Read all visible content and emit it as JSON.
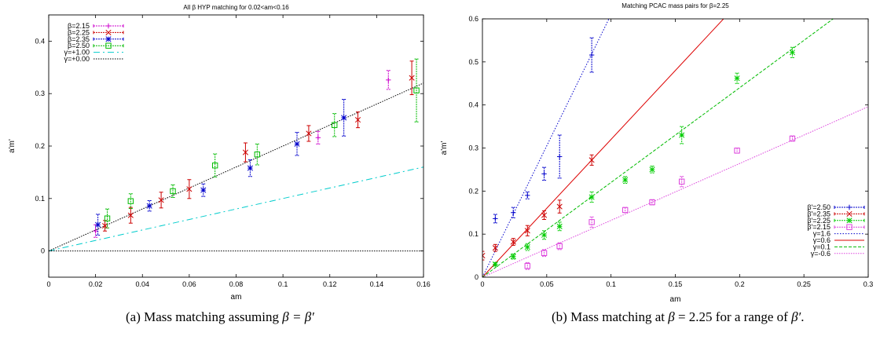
{
  "chart_data": [
    {
      "id": "a",
      "type": "scatter",
      "title": "All β HYP matching for 0.02<am<0.16",
      "xlabel": "am",
      "ylabel": "a'm'",
      "xlim": [
        0,
        0.16
      ],
      "ylim": [
        -0.05,
        0.45
      ],
      "xticks": [
        "0",
        "0.02",
        "0.04",
        "0.06",
        "0.08",
        "0.1",
        "0.12",
        "0.14",
        "0.16"
      ],
      "xtick_values": [
        0,
        0.02,
        0.04,
        0.06,
        0.08,
        0.1,
        0.12,
        0.14,
        0.16
      ],
      "yticks": [
        "0",
        "0.1",
        "0.2",
        "0.3",
        "0.4"
      ],
      "ytick_values": [
        0,
        0.1,
        0.2,
        0.3,
        0.4
      ],
      "legend_position": "top-left",
      "series": [
        {
          "name": "β=2.15",
          "color": "#cc00cc",
          "marker": "plus",
          "points": [
            [
              0.02,
              0.038,
              0.012
            ],
            [
              0.115,
              0.216,
              0.012
            ],
            [
              0.145,
              0.326,
              0.018
            ]
          ]
        },
        {
          "name": "β=2.25",
          "color": "#cc0000",
          "marker": "x",
          "points": [
            [
              0.024,
              0.048,
              0.01
            ],
            [
              0.035,
              0.068,
              0.015
            ],
            [
              0.048,
              0.097,
              0.015
            ],
            [
              0.06,
              0.118,
              0.018
            ],
            [
              0.084,
              0.188,
              0.018
            ],
            [
              0.111,
              0.224,
              0.015
            ],
            [
              0.132,
              0.25,
              0.015
            ],
            [
              0.155,
              0.33,
              0.032
            ]
          ]
        },
        {
          "name": "β=2.35",
          "color": "#0000cc",
          "marker": "star",
          "points": [
            [
              0.021,
              0.05,
              0.02
            ],
            [
              0.043,
              0.086,
              0.01
            ],
            [
              0.066,
              0.116,
              0.012
            ],
            [
              0.086,
              0.158,
              0.016
            ],
            [
              0.106,
              0.204,
              0.022
            ],
            [
              0.126,
              0.254,
              0.035
            ]
          ]
        },
        {
          "name": "β=2.50",
          "color": "#00bb00",
          "marker": "box",
          "points": [
            [
              0.025,
              0.062,
              0.018
            ],
            [
              0.035,
              0.095,
              0.014
            ],
            [
              0.053,
              0.114,
              0.012
            ],
            [
              0.071,
              0.163,
              0.022
            ],
            [
              0.089,
              0.184,
              0.02
            ],
            [
              0.122,
              0.24,
              0.022
            ],
            [
              0.157,
              0.306,
              0.06
            ]
          ]
        }
      ],
      "lines": [
        {
          "name": "γ=+1.00",
          "color": "#00cccc",
          "dash": "8,4,2,4",
          "slope": 1.0,
          "intercept": 0
        },
        {
          "name": "γ=+0.00",
          "color": "#000000",
          "dash": "1.5,1.5",
          "slope": 0.0,
          "intercept": 0
        },
        {
          "name": "",
          "color": "#000000",
          "dash": "1.5,1.5",
          "slope": 2.0,
          "intercept": 0
        }
      ]
    },
    {
      "id": "b",
      "type": "scatter",
      "title": "Matching PCAC mass pairs for β=2.25",
      "xlabel": "am",
      "ylabel": "a'm'",
      "xlim": [
        0,
        0.3
      ],
      "ylim": [
        0,
        0.6
      ],
      "xticks": [
        "0",
        "0.05",
        "0.1",
        "0.15",
        "0.2",
        "0.25",
        "0.3"
      ],
      "xtick_values": [
        0,
        0.05,
        0.1,
        0.15,
        0.2,
        0.25,
        0.3
      ],
      "yticks": [
        "0",
        "0.1",
        "0.2",
        "0.3",
        "0.4",
        "0.5",
        "0.6"
      ],
      "ytick_values": [
        0,
        0.1,
        0.2,
        0.3,
        0.4,
        0.5,
        0.6
      ],
      "legend_position": "bottom-right",
      "series": [
        {
          "name": "β'=2.50",
          "color": "#0000cc",
          "marker": "plus",
          "points": [
            [
              0.01,
              0.136,
              0.01
            ],
            [
              0.024,
              0.15,
              0.012
            ],
            [
              0.035,
              0.19,
              0.008
            ],
            [
              0.048,
              0.24,
              0.015
            ],
            [
              0.06,
              0.28,
              0.05
            ],
            [
              0.085,
              0.516,
              0.04
            ]
          ]
        },
        {
          "name": "β'=2.35",
          "color": "#cc0000",
          "marker": "x",
          "points": [
            [
              0.0,
              0.05,
              0.01
            ],
            [
              0.01,
              0.068,
              0.008
            ],
            [
              0.024,
              0.082,
              0.008
            ],
            [
              0.035,
              0.108,
              0.012
            ],
            [
              0.048,
              0.144,
              0.01
            ],
            [
              0.06,
              0.164,
              0.015
            ],
            [
              0.085,
              0.272,
              0.012
            ]
          ]
        },
        {
          "name": "β'=2.25",
          "color": "#00cc00",
          "marker": "star",
          "points": [
            [
              0.01,
              0.03,
              0.004
            ],
            [
              0.024,
              0.048,
              0.006
            ],
            [
              0.035,
              0.07,
              0.008
            ],
            [
              0.048,
              0.098,
              0.01
            ],
            [
              0.06,
              0.118,
              0.01
            ],
            [
              0.085,
              0.186,
              0.012
            ],
            [
              0.111,
              0.226,
              0.008
            ],
            [
              0.132,
              0.25,
              0.008
            ],
            [
              0.155,
              0.33,
              0.02
            ],
            [
              0.198,
              0.462,
              0.012
            ],
            [
              0.241,
              0.522,
              0.012
            ]
          ]
        },
        {
          "name": "β'=2.15",
          "color": "#dd44dd",
          "marker": "box",
          "points": [
            [
              0.035,
              0.026,
              0.008
            ],
            [
              0.048,
              0.056,
              0.008
            ],
            [
              0.06,
              0.072,
              0.008
            ],
            [
              0.085,
              0.128,
              0.012
            ],
            [
              0.111,
              0.156,
              0.006
            ],
            [
              0.132,
              0.174,
              0.006
            ],
            [
              0.155,
              0.222,
              0.012
            ],
            [
              0.198,
              0.294,
              0.006
            ],
            [
              0.241,
              0.322,
              0.006
            ]
          ]
        }
      ],
      "lines": [
        {
          "name": "γ=1.6",
          "color": "#0000cc",
          "dash": "1.5,2",
          "slope": 6.1,
          "intercept": 0
        },
        {
          "name": "γ=0.6",
          "color": "#dd0000",
          "dash": "",
          "slope": 3.2,
          "intercept": 0
        },
        {
          "name": "γ=0.1",
          "color": "#00bb00",
          "dash": "4,2",
          "slope": 2.2,
          "intercept": 0
        },
        {
          "name": "γ=-0.6",
          "color": "#dd44dd",
          "dash": "1.5,1.5",
          "slope": 1.32,
          "intercept": 0
        }
      ]
    }
  ],
  "captions": {
    "a": {
      "prefix": "(a) Mass matching assuming ",
      "math": "β = β′"
    },
    "b": {
      "prefix": "(b) Mass matching at ",
      "math1": "β",
      "mid": " = 2.25 for a range of ",
      "math2": "β′",
      "suffix": "."
    }
  }
}
